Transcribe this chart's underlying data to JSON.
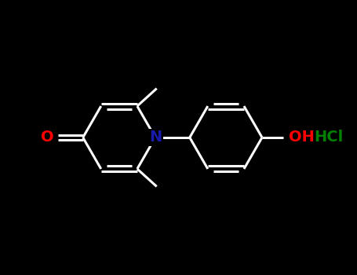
{
  "background_color": "#000000",
  "bond_width": 2.2,
  "atom_colors": {
    "O": "#ff0000",
    "N": "#1a1aaa",
    "OH": "#ff0000",
    "Cl": "#008000"
  },
  "line_color": "#ffffff",
  "font_size_atom": 14,
  "font_size_hcl": 14
}
